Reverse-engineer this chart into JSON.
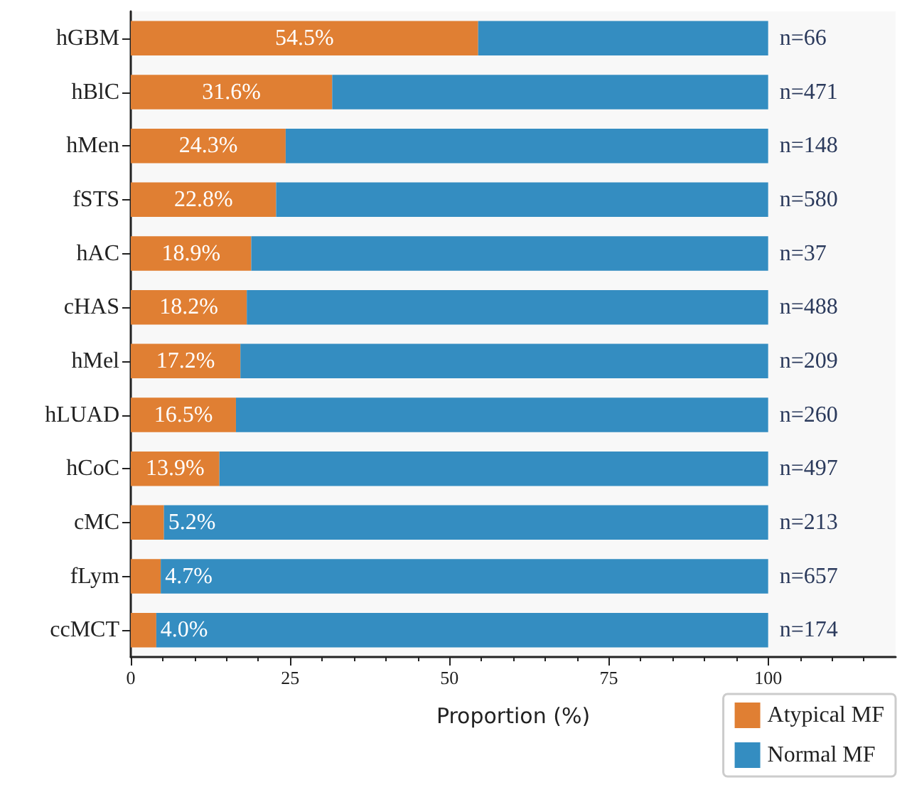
{
  "chart_data": {
    "type": "bar",
    "orientation": "horizontal",
    "stacked": true,
    "categories": [
      "hGBM",
      "hBlC",
      "hMen",
      "fSTS",
      "hAC",
      "cHAS",
      "hMel",
      "hLUAD",
      "hCoC",
      "cMC",
      "fLym",
      "ccMCT"
    ],
    "series": [
      {
        "name": "Atypical MF",
        "color": "#e07f33",
        "values": [
          54.5,
          31.6,
          24.3,
          22.8,
          18.9,
          18.2,
          17.2,
          16.5,
          13.9,
          5.2,
          4.7,
          4.0
        ],
        "value_labels": [
          "54.5%",
          "31.6%",
          "24.3%",
          "22.8%",
          "18.9%",
          "18.2%",
          "17.2%",
          "16.5%",
          "13.9%",
          "5.2%",
          "4.7%",
          "4.0%"
        ]
      },
      {
        "name": "Normal MF",
        "color": "#348dc1",
        "values": [
          45.5,
          68.4,
          75.7,
          77.2,
          81.1,
          81.8,
          82.8,
          83.5,
          86.1,
          94.8,
          95.3,
          96.0
        ]
      }
    ],
    "xlabel": "Proportion (%)",
    "xlim": [
      0,
      120
    ],
    "xticks": [
      0,
      25,
      50,
      75,
      100
    ],
    "legend": "bottom right",
    "annotations": [
      "n=66",
      "n=471",
      "n=148",
      "n=580",
      "n=37",
      "n=488",
      "n=209",
      "n=260",
      "n=497",
      "n=213",
      "n=657",
      "n=174"
    ]
  }
}
